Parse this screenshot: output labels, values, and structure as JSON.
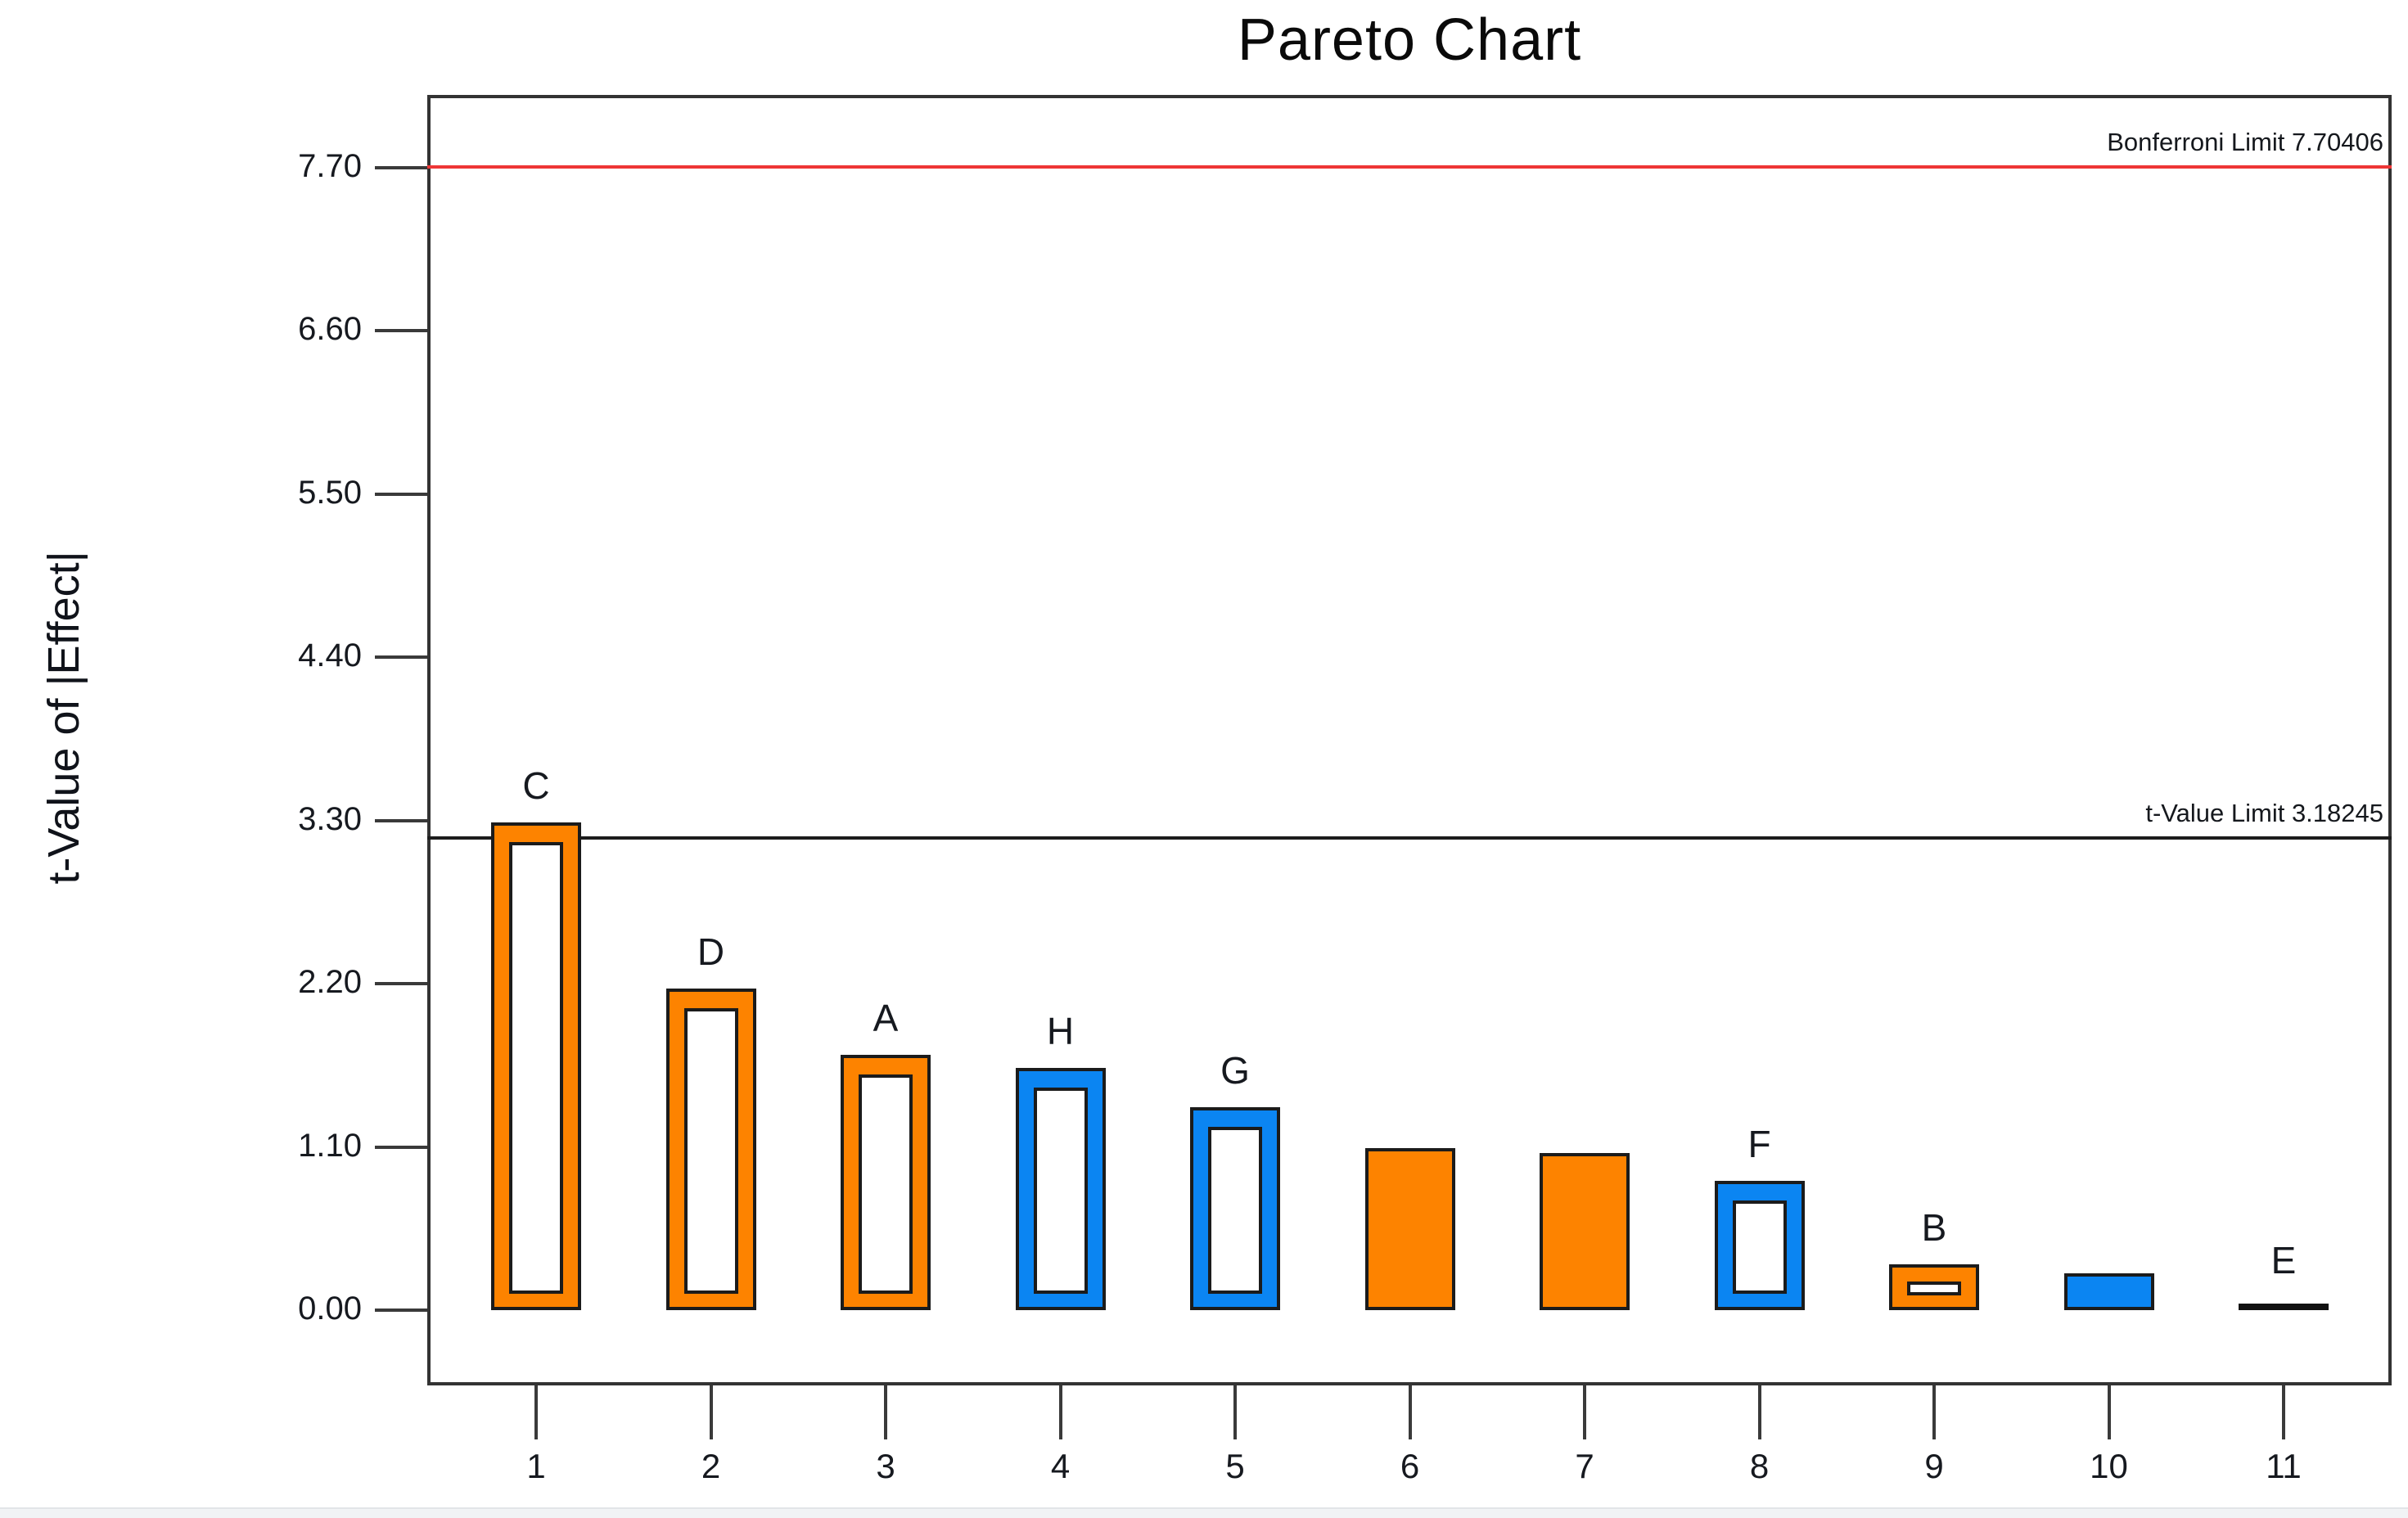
{
  "title": "Pareto Chart",
  "y_axis": {
    "label": "t-Value of |Effect|",
    "tick_labels": [
      "7.70",
      "6.60",
      "5.50",
      "4.40",
      "3.30",
      "2.20",
      "1.10",
      "0.00"
    ]
  },
  "x_axis": {
    "tick_labels": [
      "1",
      "2",
      "3",
      "4",
      "5",
      "6",
      "7",
      "8",
      "9",
      "10",
      "11"
    ]
  },
  "limit_lines": [
    {
      "name": "bonferroni-limit",
      "label": "Bonferroni Limit 7.70406",
      "value": 7.70406,
      "color": "#ee3636"
    },
    {
      "name": "t-value-limit",
      "label": "t-Value Limit 3.18245",
      "value": 3.18245,
      "color": "#1c1c1c"
    }
  ],
  "colors": {
    "positive_effect": "#fd8300",
    "negative_effect": "#0b85f2",
    "bar_outline": "#1b1b1b",
    "reference_line_red": "#ee3636",
    "axis": "#333333"
  },
  "chart_data": {
    "type": "bar",
    "title": "Pareto Chart",
    "xlabel": "",
    "ylabel": "t-Value of |Effect|",
    "ylim": [
      -0.51,
      8.19
    ],
    "yticks": [
      0.0,
      1.1,
      2.2,
      3.3,
      4.4,
      5.5,
      6.6,
      7.7
    ],
    "categories": [
      "1",
      "2",
      "3",
      "4",
      "5",
      "6",
      "7",
      "8",
      "9",
      "10",
      "11"
    ],
    "grid": false,
    "legend": false,
    "reference_lines": [
      {
        "label": "Bonferroni Limit 7.70406",
        "value": 7.70406
      },
      {
        "label": "t-Value Limit 3.18245",
        "value": 3.18245
      }
    ],
    "bars": [
      {
        "rank": 1,
        "label": "C",
        "value": 3.29,
        "effect": "positive",
        "style": "hollow"
      },
      {
        "rank": 2,
        "label": "D",
        "value": 2.17,
        "effect": "positive",
        "style": "hollow"
      },
      {
        "rank": 3,
        "label": "A",
        "value": 1.72,
        "effect": "positive",
        "style": "hollow"
      },
      {
        "rank": 4,
        "label": "H",
        "value": 1.63,
        "effect": "negative",
        "style": "hollow"
      },
      {
        "rank": 5,
        "label": "G",
        "value": 1.37,
        "effect": "negative",
        "style": "hollow"
      },
      {
        "rank": 6,
        "label": "",
        "value": 1.09,
        "effect": "positive",
        "style": "solid"
      },
      {
        "rank": 7,
        "label": "",
        "value": 1.06,
        "effect": "positive",
        "style": "solid"
      },
      {
        "rank": 8,
        "label": "F",
        "value": 0.87,
        "effect": "negative",
        "style": "hollow"
      },
      {
        "rank": 9,
        "label": "B",
        "value": 0.31,
        "effect": "positive",
        "style": "hollow"
      },
      {
        "rank": 10,
        "label": "",
        "value": 0.25,
        "effect": "negative",
        "style": "solid"
      },
      {
        "rank": 11,
        "label": "E",
        "value": 0.02,
        "effect": "none",
        "style": "line"
      }
    ]
  }
}
